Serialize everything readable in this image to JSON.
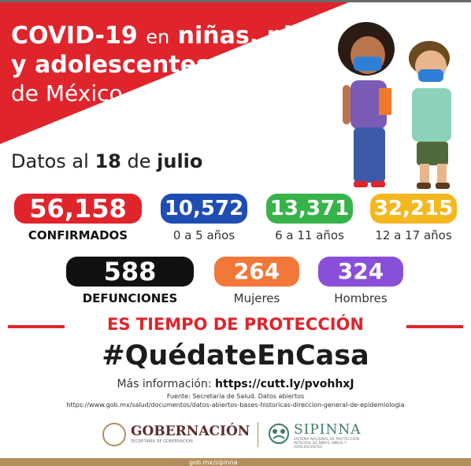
{
  "title": {
    "line1_bold": "COVID-19",
    "line1_en": "en",
    "line1_rest": "niñas, niños",
    "line2": "y adolescentes",
    "line3": "de México"
  },
  "date": {
    "prefix": "Datos al",
    "day": "18",
    "de": "de",
    "month": "julio"
  },
  "stats": {
    "confirmados": {
      "value": "56,158",
      "label": "CONFIRMADOS",
      "color": "#e0242c"
    },
    "age_0_5": {
      "value": "10,572",
      "label": "0 a 5 años",
      "color": "#1e4db3"
    },
    "age_6_11": {
      "value": "13,371",
      "label": "6 a 11 años",
      "color": "#37b34a"
    },
    "age_12_17": {
      "value": "32,215",
      "label": "12 a 17 años",
      "color": "#f5b71f"
    },
    "defunciones": {
      "value": "588",
      "label": "DEFUNCIONES",
      "color": "#111111"
    },
    "mujeres": {
      "value": "264",
      "label": "Mujeres",
      "color": "#f2783a"
    },
    "hombres": {
      "value": "324",
      "label": "Hombres",
      "color": "#8a4fd8"
    }
  },
  "campaign": {
    "heading": "ES TIEMPO DE PROTECCIÓN",
    "hashtag": "#QuédateEnCasa",
    "info_prefix": "Más información:",
    "info_link": "https://cutt.ly/pvohhxJ",
    "source": "Fuente: Secretaría de Salud. Datos abiertos",
    "source_url": "https://www.gob.mx/salud/documentos/datos-abiertos-bases-historicas-direccion-general-de-epidemiologia"
  },
  "logos": {
    "gobernacion": "GOBERNACIÓN",
    "gobernacion_sub": "SECRETARÍA DE GOBERNACIÓN",
    "sipinna": "SIPINNA",
    "sipinna_sub": "SISTEMA NACIONAL DE PROTECCIÓN INTEGRAL DE NIÑAS, NIÑOS Y ADOLESCENTES"
  },
  "footer": {
    "url": "gob.mx/sipinna"
  }
}
